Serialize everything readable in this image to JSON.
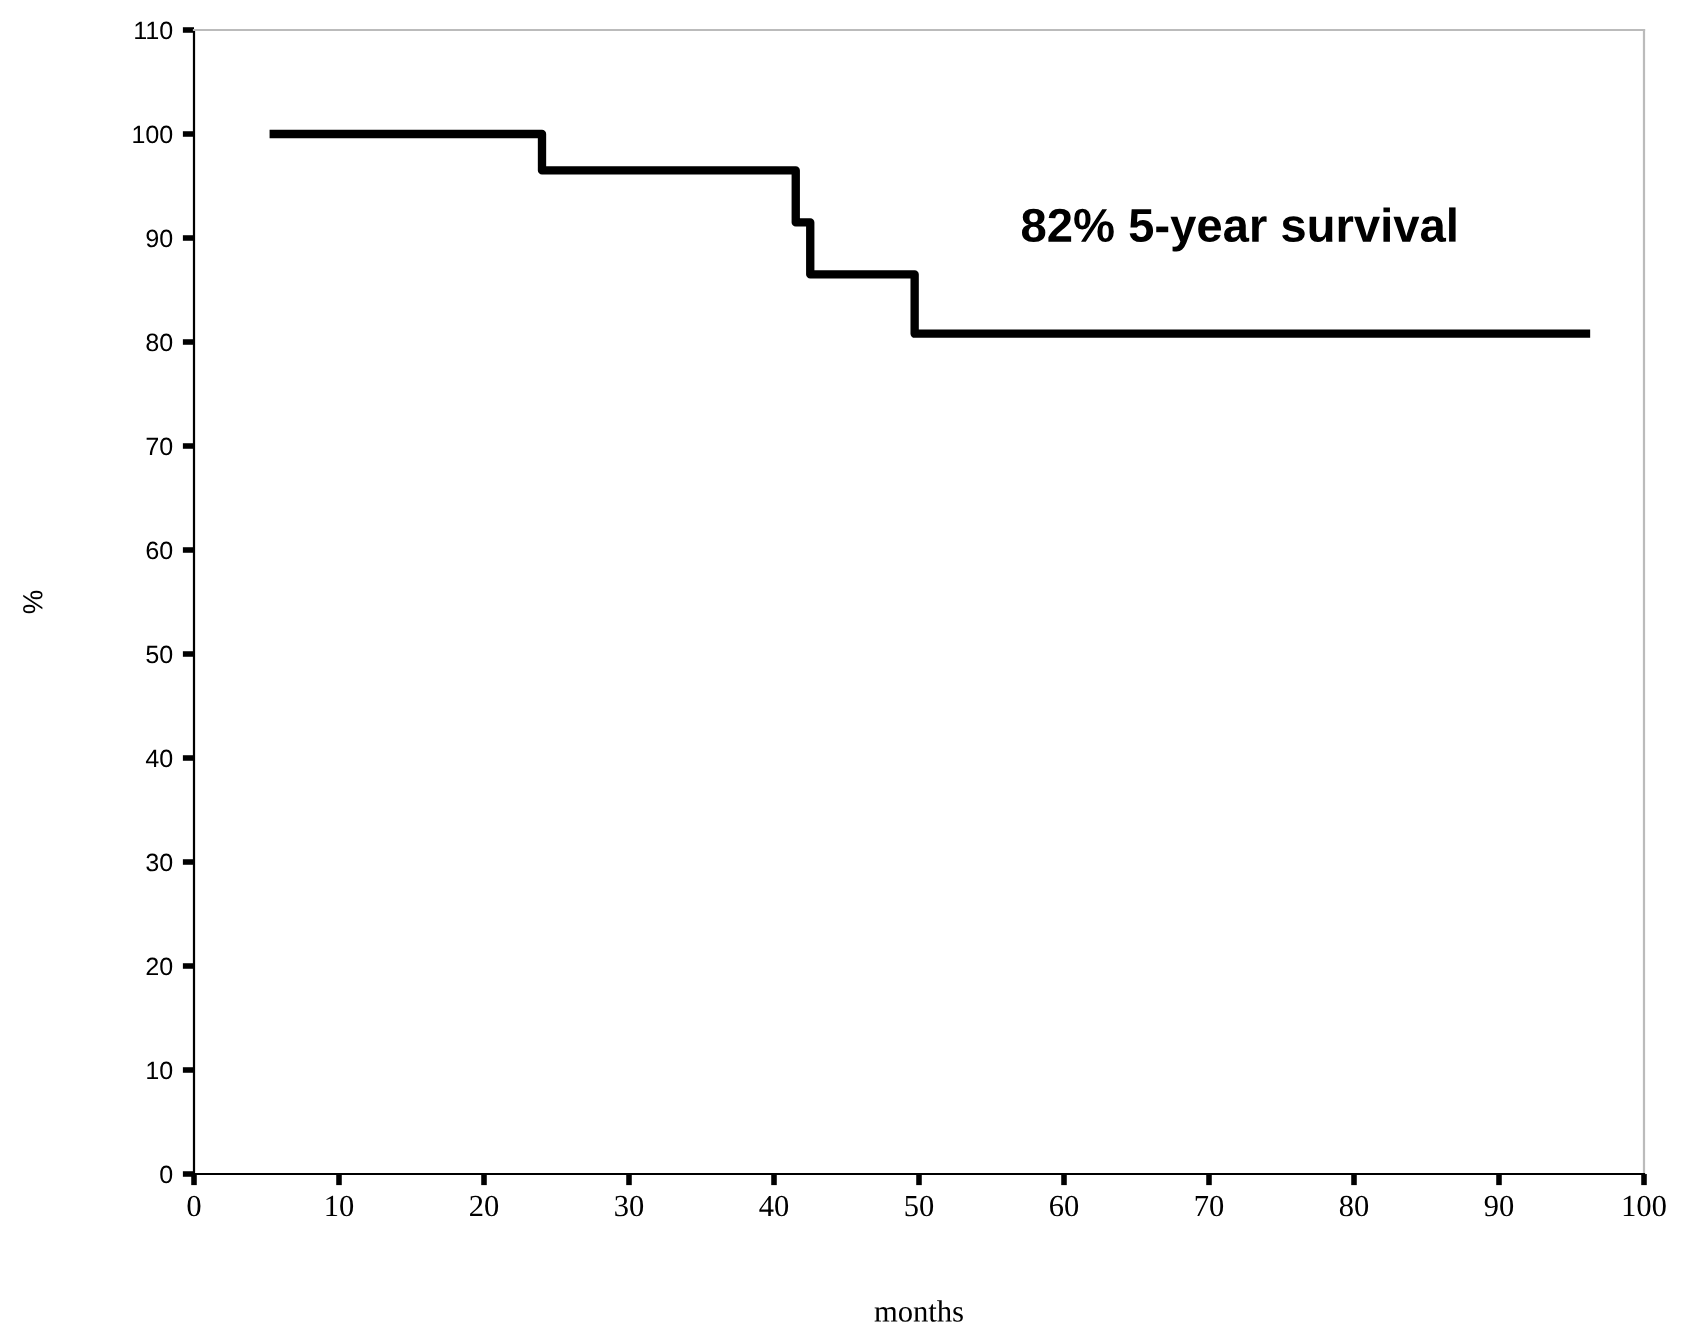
{
  "chart_data": {
    "type": "step",
    "xlabel": "months",
    "ylabel": "%",
    "x": [
      5.5,
      24,
      41.5,
      42.5,
      49.7,
      96
    ],
    "series": [
      {
        "color": "#000000",
        "values": [
          100,
          96.5,
          91.5,
          86.5,
          80.8,
          80.8
        ]
      }
    ],
    "xlim": [
      0,
      100
    ],
    "xticks": [
      0,
      10,
      20,
      30,
      40,
      50,
      60,
      70,
      80,
      90,
      100
    ],
    "ylim": [
      0,
      110
    ],
    "yticks": [
      0,
      10,
      20,
      30,
      40,
      50,
      60,
      70,
      80,
      90,
      100,
      110
    ],
    "annotations": [
      "82% 5-year survival"
    ],
    "grid": false,
    "legend": false
  }
}
